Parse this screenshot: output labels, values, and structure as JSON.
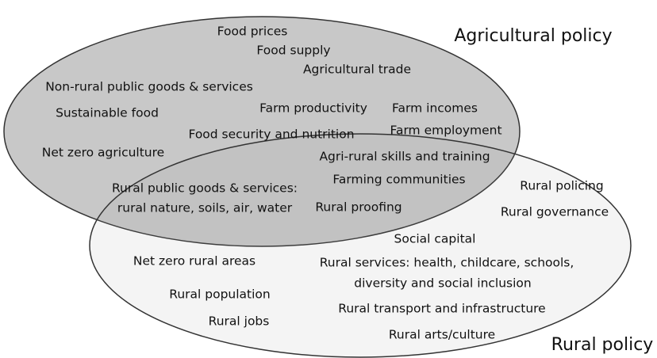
{
  "sets": [
    {
      "label": "Agricultural policy"
    },
    {
      "label": "Rural policy"
    }
  ],
  "items": [
    "Food prices",
    "Food supply",
    "Agricultural trade",
    "Non-rural public goods & services",
    "Sustainable food",
    "Farm productivity",
    "Farm incomes",
    "Food security and nutrition",
    "Farm employment",
    "Net zero agriculture",
    "Agri-rural skills and training",
    "Farming communities",
    "Rural public goods & services:",
    "rural nature, soils, air, water",
    "Rural proofing",
    "Rural policing",
    "Rural governance",
    "Social capital",
    "Net zero rural areas",
    "Rural services: health, childcare, schools,",
    "diversity and social inclusion",
    "Rural population",
    "Rural transport and infrastructure",
    "Rural jobs",
    "Rural arts/culture"
  ]
}
